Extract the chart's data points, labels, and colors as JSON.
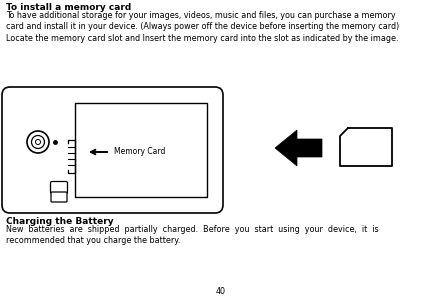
{
  "title_text": "To install a memory card",
  "body_text1": "To have additional storage for your images, videos, music and files, you can purchase a memory\ncard and install it in your device. (Always power off the device before inserting the memory card)\nLocate the memory card slot and Insert the memory card into the slot as indicated by the image.",
  "section2_title": "Charging the Battery",
  "section2_body": "New  batteries  are  shipped  partially  charged.  Before  you  start  using  your  device,  it  is\nrecommended that you charge the battery.",
  "page_number": "40",
  "bg_color": "#ffffff",
  "text_color": "#000000",
  "title_fontsize": 6.5,
  "body_fontsize": 5.8,
  "section2_title_fontsize": 6.5,
  "section2_body_fontsize": 5.8
}
